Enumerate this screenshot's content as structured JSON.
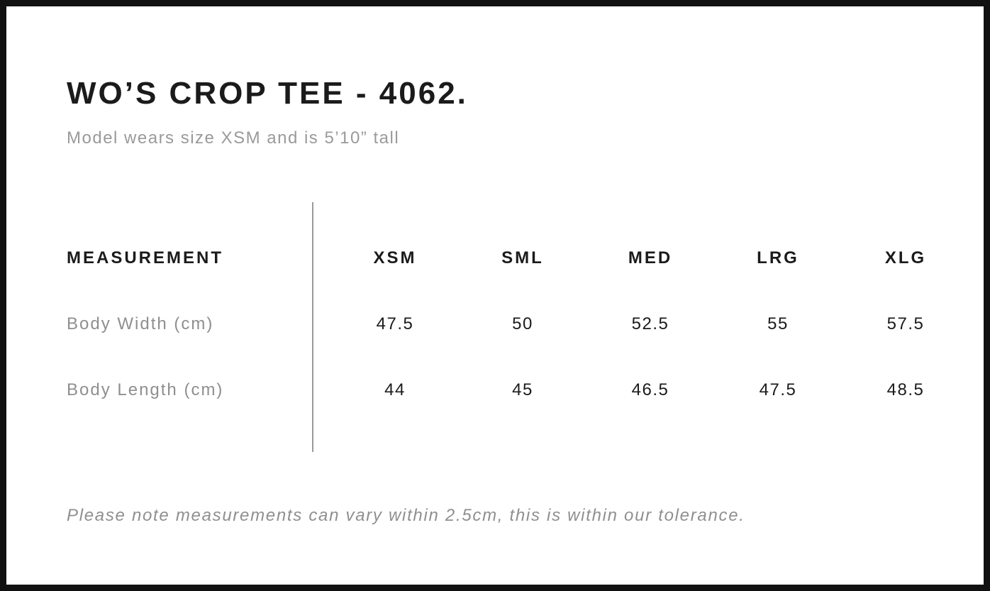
{
  "header": {
    "title": "WO’S CROP TEE - 4062.",
    "subtitle": "Model wears size XSM and is 5’10” tall"
  },
  "chart_data": {
    "type": "table",
    "columns": [
      "MEASUREMENT",
      "XSM",
      "SML",
      "MED",
      "LRG",
      "XLG"
    ],
    "rows": [
      {
        "label": "Body Width (cm)",
        "values": [
          "47.5",
          "50",
          "52.5",
          "55",
          "57.5"
        ]
      },
      {
        "label": "Body Length (cm)",
        "values": [
          "44",
          "45",
          "46.5",
          "47.5",
          "48.5"
        ]
      }
    ]
  },
  "footnote": "Please note measurements can vary within 2.5cm, this is within our tolerance.",
  "colors": {
    "text_primary": "#1b1b1b",
    "text_muted": "#9a9a9a",
    "divider": "#9a9a9a",
    "frame_border": "#111111",
    "background": "#ffffff"
  }
}
